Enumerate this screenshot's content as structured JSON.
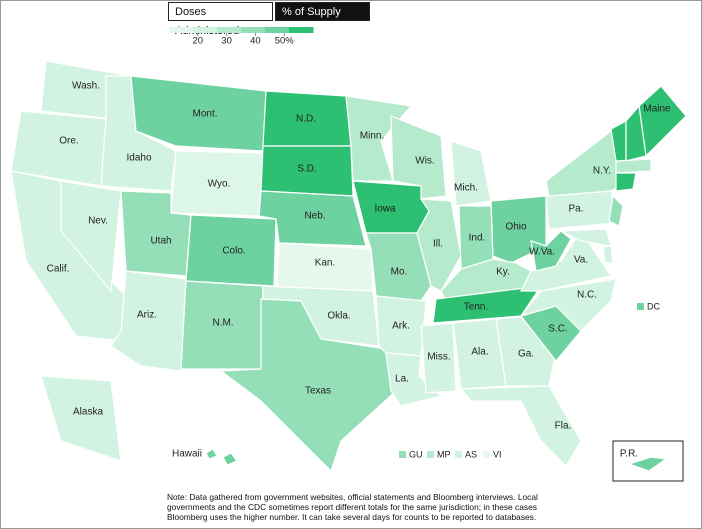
{
  "tabs": [
    {
      "label": "Doses Administered",
      "active": false
    },
    {
      "label": "% of Supply Used",
      "active": true
    }
  ],
  "legend": {
    "xlim": [
      10,
      60
    ],
    "ticks": [
      20,
      30,
      40,
      {
        "value": 50,
        "label": "50%"
      }
    ],
    "colors": [
      "#e6f8ee",
      "#d2f3e1",
      "#b6eacd",
      "#95dfb8",
      "#6ed2a0",
      "#2dc073"
    ]
  },
  "states": [
    {
      "label": "Wash.",
      "color": "#d2f3e1"
    },
    {
      "label": "Ore.",
      "color": "#d2f3e1"
    },
    {
      "label": "Calif.",
      "color": "#d2f3e1"
    },
    {
      "label": "Nev.",
      "color": "#d2f3e1"
    },
    {
      "label": "Idaho",
      "color": "#d2f3e1"
    },
    {
      "label": "Mont.",
      "color": "#6ed2a0"
    },
    {
      "label": "Wyo.",
      "color": "#dcf6e8"
    },
    {
      "label": "Utah",
      "color": "#95dfb8"
    },
    {
      "label": "Colo.",
      "color": "#6ed2a0"
    },
    {
      "label": "Ariz.",
      "color": "#d2f3e1"
    },
    {
      "label": "N.M.",
      "color": "#95dfb8"
    },
    {
      "label": "N.D.",
      "color": "#2dc073"
    },
    {
      "label": "S.D.",
      "color": "#2dc073"
    },
    {
      "label": "Neb.",
      "color": "#6ed2a0"
    },
    {
      "label": "Kan.",
      "color": "#e6f8ee"
    },
    {
      "label": "Okla.",
      "color": "#d2f3e1"
    },
    {
      "label": "Texas",
      "color": "#95dfb8"
    },
    {
      "label": "Minn.",
      "color": "#b6eacd"
    },
    {
      "label": "Iowa",
      "color": "#2dc073"
    },
    {
      "label": "Mo.",
      "color": "#95dfb8"
    },
    {
      "label": "Ark.",
      "color": "#d2f3e1"
    },
    {
      "label": "La.",
      "color": "#d2f3e1"
    },
    {
      "label": "Wis.",
      "color": "#b6eacd"
    },
    {
      "label": "Ill.",
      "color": "#b6eacd"
    },
    {
      "label": "Mich.",
      "color": "#d2f3e1"
    },
    {
      "label": "Ind.",
      "color": "#95dfb8"
    },
    {
      "label": "Ohio",
      "color": "#6ed2a0"
    },
    {
      "label": "Ky.",
      "color": "#b6eacd"
    },
    {
      "label": "Tenn.",
      "color": "#2dc073"
    },
    {
      "label": "Miss.",
      "color": "#d2f3e1"
    },
    {
      "label": "Ala.",
      "color": "#d2f3e1"
    },
    {
      "label": "Ga.",
      "color": "#d2f3e1"
    },
    {
      "label": "Fla.",
      "color": "#d2f3e1"
    },
    {
      "label": "S.C.",
      "color": "#6ed2a0"
    },
    {
      "label": "N.C.",
      "color": "#d2f3e1"
    },
    {
      "label": "Va.",
      "color": "#d2f3e1"
    },
    {
      "label": "W.Va.",
      "color": "#6ed2a0"
    },
    {
      "label": "Pa.",
      "color": "#d2f3e1"
    },
    {
      "label": "N.Y.",
      "color": "#b6eacd"
    },
    {
      "label": "Maine",
      "color": "#2dc073"
    },
    {
      "label": "Alaska",
      "color": "#d2f3e1"
    },
    {
      "label": "Hawaii",
      "color": "#6ed2a0"
    },
    {
      "label": "P.R.",
      "color": "#6ed2a0"
    },
    {
      "label": null,
      "color": "#95dfb8"
    },
    {
      "label": null,
      "color": "#d2f3e1"
    },
    {
      "label": null,
      "color": "#d2f3e1"
    },
    {
      "label": null,
      "color": "#2dc073"
    },
    {
      "label": null,
      "color": "#2dc073"
    },
    {
      "label": null,
      "color": "#b6eacd"
    },
    {
      "label": null,
      "color": "#2dc073"
    }
  ],
  "dc": {
    "label": "DC",
    "color": "#6ed2a0"
  },
  "territories": [
    {
      "label": "GU",
      "color": "#95dfb8"
    },
    {
      "label": "MP",
      "color": "#b6eacd"
    },
    {
      "label": "AS",
      "color": "#d2f3e1"
    },
    {
      "label": "VI",
      "color": "#e6f8ee"
    }
  ],
  "note": "Note: Data gathered from government websites, official statements and Bloomberg interviews. Local governments and the CDC sometimes report different totals for the same jurisdiction; in these cases Bloomberg uses the higher number. It can take several days for counts to be reported to databases."
}
